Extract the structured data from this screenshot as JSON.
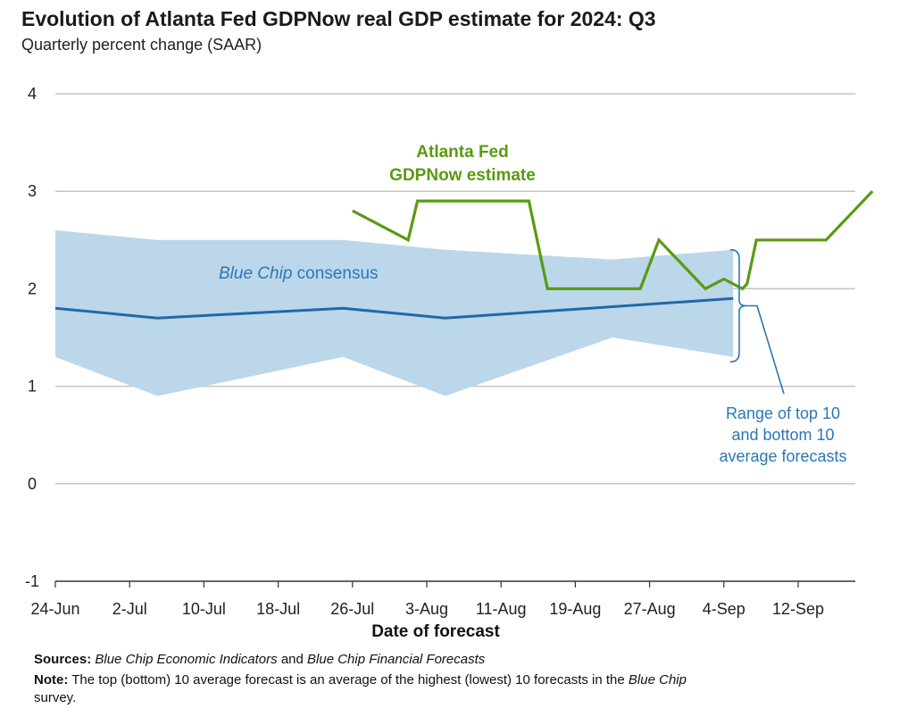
{
  "title": "Evolution of Atlanta Fed GDPNow real GDP estimate for 2024: Q3",
  "subtitle": "Quarterly percent change (SAAR)",
  "chart_data": {
    "type": "line",
    "xlabel": "Date of forecast",
    "ylabel": "",
    "ylim": [
      -1,
      4
    ],
    "yticks": [
      4,
      3,
      2,
      1,
      0,
      -1
    ],
    "x_ticks": [
      "24-Jun",
      "2-Jul",
      "10-Jul",
      "18-Jul",
      "26-Jul",
      "3-Aug",
      "11-Aug",
      "19-Aug",
      "27-Aug",
      "4-Sep",
      "12-Sep"
    ],
    "x_domain_days": [
      0,
      86
    ],
    "grid": true,
    "series": [
      {
        "name": "Atlanta Fed GDPNow estimate",
        "label_lines": [
          "Atlanta Fed",
          "GDPNow estimate"
        ],
        "color": "#5a9a12",
        "x_days": [
          32,
          38,
          39,
          51,
          53,
          63,
          65,
          70,
          72,
          74,
          74.5,
          75.5,
          83,
          88
        ],
        "values": [
          2.8,
          2.5,
          2.9,
          2.9,
          2.0,
          2.0,
          2.5,
          2.0,
          2.1,
          2.0,
          2.05,
          2.5,
          2.5,
          3.0
        ]
      },
      {
        "name": "Blue Chip consensus",
        "label_plain": "consensus",
        "label_italic": "Blue Chip",
        "color": "#1f6aa8",
        "x_days": [
          0,
          11,
          31,
          42,
          73
        ],
        "values": [
          1.8,
          1.7,
          1.8,
          1.7,
          1.9
        ]
      },
      {
        "name": "Range of top 10 and bottom 10 average forecasts",
        "type": "band",
        "color": "#bcd7ea",
        "x_days": [
          0,
          11,
          31,
          42,
          60,
          73
        ],
        "upper": [
          2.6,
          2.5,
          2.5,
          2.4,
          2.3,
          2.4
        ],
        "lower": [
          1.3,
          0.9,
          1.3,
          0.9,
          1.5,
          1.3
        ]
      }
    ],
    "annotations": {
      "range_label_lines": [
        "Range of top 10",
        "and bottom 10",
        "average forecasts"
      ]
    }
  },
  "footer": {
    "sources_label": "Sources:",
    "sources_src1": "Blue Chip Economic Indicators",
    "sources_and": "and",
    "sources_src2": "Blue Chip Financial Forecasts",
    "note_label": "Note:",
    "note_text1": "The top (bottom) 10 average forecast is an average of the highest (lowest) 10 forecasts in the",
    "note_italic": "Blue Chip",
    "note_text2": "survey."
  }
}
